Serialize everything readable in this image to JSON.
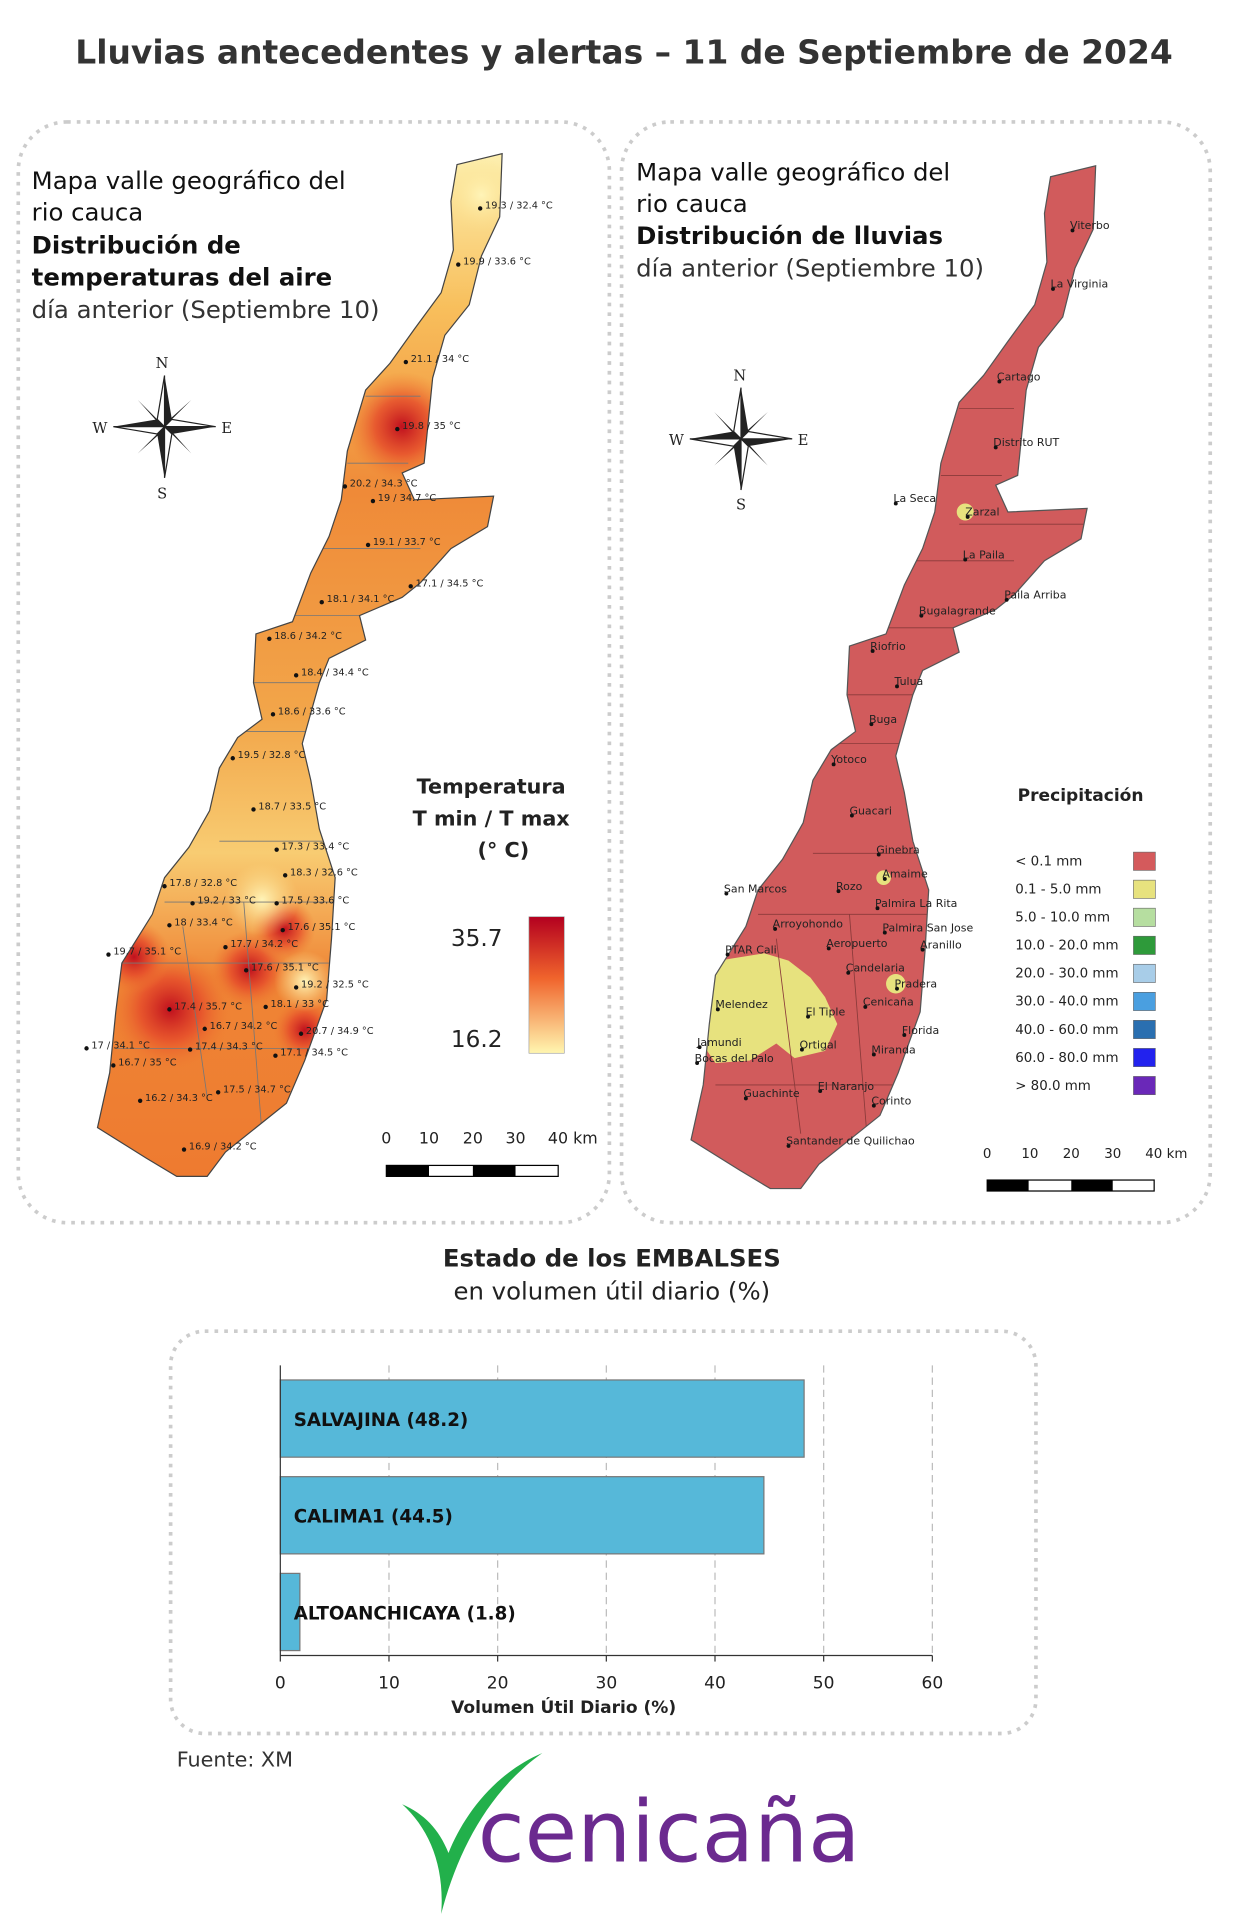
{
  "title": "Lluvias antecedentes y alertas – 11 de Septiembre de 2024",
  "compass": {
    "n": "N",
    "w": "W",
    "e": "E",
    "s": "S"
  },
  "scale": [
    0,
    10,
    20,
    30,
    "40 km"
  ],
  "temperature_map": {
    "heading": [
      "Mapa valle geográfico del",
      "rio cauca",
      "Distribución de",
      "temperaturas del aire",
      "día anterior (Septiembre 10)"
    ],
    "stations": [
      "19.3 / 32.4 °C",
      "19.9 / 33.6 °C",
      "21.1 / 34 °C",
      "19.8 / 35 °C",
      "20.2 / 34.3 °C",
      "19 / 34.7 °C",
      "19.1 / 33.7 °C",
      "17.1 / 34.5 °C",
      "18.1 / 34.1 °C",
      "18.6 / 34.2 °C",
      "18.4 / 34.4 °C",
      "18.6 / 33.6 °C",
      "19.5 / 32.8 °C",
      "18.7 / 33.5 °C",
      "17.3 / 33.4 °C",
      "18.3 / 32.6 °C",
      "17.8 / 32.8 °C",
      "19.2 / 33 °C",
      "17.5 / 33.6 °C",
      "18 / 33.4 °C",
      "17.6 / 35.1 °C",
      "17.7 / 34.2 °C",
      "19.7 / 35.1 °C",
      "17.6 / 35.1 °C",
      "19.2 / 32.5 °C",
      "17.4 / 35.7 °C",
      "18.1 / 33 °C",
      "16.7 / 34.2 °C",
      "20.7 / 34.9 °C",
      "17 / 34.1 °C",
      "17.4 / 34.3 °C",
      "16.7 / 35 °C",
      "17.1 / 34.5 °C",
      "17.5 / 34.7 °C",
      "16.2 / 34.3 °C",
      "16.9 / 34.2 °C"
    ],
    "legend": {
      "title": "Temperatura",
      "subtitle": "T min / T max",
      "unit": "(° C)",
      "max": 35.7,
      "min": 16.2
    }
  },
  "rain_map": {
    "heading": [
      "Mapa valle geográfico del",
      "rio cauca",
      "Distribución de lluvias",
      "día anterior (Septiembre 10)"
    ],
    "stations": [
      "Viterbo",
      "La Virginia",
      "Cartago",
      "Distrito RUT",
      "La Seca",
      "Zarzal",
      "La Paila",
      "Paila Arriba",
      "Bugalagrande",
      "Riofrio",
      "Tulua",
      "Buga",
      "Yotoco",
      "Guacari",
      "Ginebra",
      "Amaime",
      "San Marcos",
      "Rozo",
      "Palmira La Rita",
      "Arroyohondo",
      "Palmira San Jose",
      "Aeropuerto",
      "Aranillo",
      "PTAR Cali",
      "Candelaria",
      "Pradera",
      "Melendez",
      "Cenicaña",
      "El Tiple",
      "Florida",
      "Jamundi",
      "Ortigal",
      "Miranda",
      "Bocas del Palo",
      "El Naranjo",
      "Guachinte",
      "Corinto",
      "Santander de Quilichao"
    ],
    "legend": {
      "title": "Precipitación",
      "items": [
        {
          "label": "< 0.1 mm",
          "color": "#d45a5c"
        },
        {
          "label": "0.1 - 5.0 mm",
          "color": "#e7e27e"
        },
        {
          "label": "5.0 - 10.0 mm",
          "color": "#b6dea0"
        },
        {
          "label": "10.0 - 20.0 mm",
          "color": "#2e9a3a"
        },
        {
          "label": "20.0 - 30.0 mm",
          "color": "#a8cde8"
        },
        {
          "label": "30.0 - 40.0 mm",
          "color": "#4a9fe0"
        },
        {
          "label": "40.0 - 60.0 mm",
          "color": "#2a6fb0"
        },
        {
          "label": "60.0 - 80.0 mm",
          "color": "#2222ee"
        },
        {
          "label": "> 80.0 mm",
          "color": "#6a28b8"
        }
      ]
    }
  },
  "chart_data": {
    "type": "bar",
    "orientation": "horizontal",
    "title": "Estado de los EMBALSES",
    "subtitle": "en volumen útil diario (%)",
    "categories": [
      "SALVAJINA (48.2)",
      "CALIMA1 (44.5)",
      "ALTOANCHICAYA (1.8)"
    ],
    "values": [
      48.2,
      44.5,
      1.8
    ],
    "color": "#56b8d9",
    "xlim": [
      0,
      60
    ],
    "xticks": [
      0,
      10,
      20,
      30,
      40,
      50,
      60
    ],
    "xlabel": "Volumen Útil Diario (%)",
    "grid": true
  },
  "source": "Fuente: XM",
  "logo": "cenicaña"
}
